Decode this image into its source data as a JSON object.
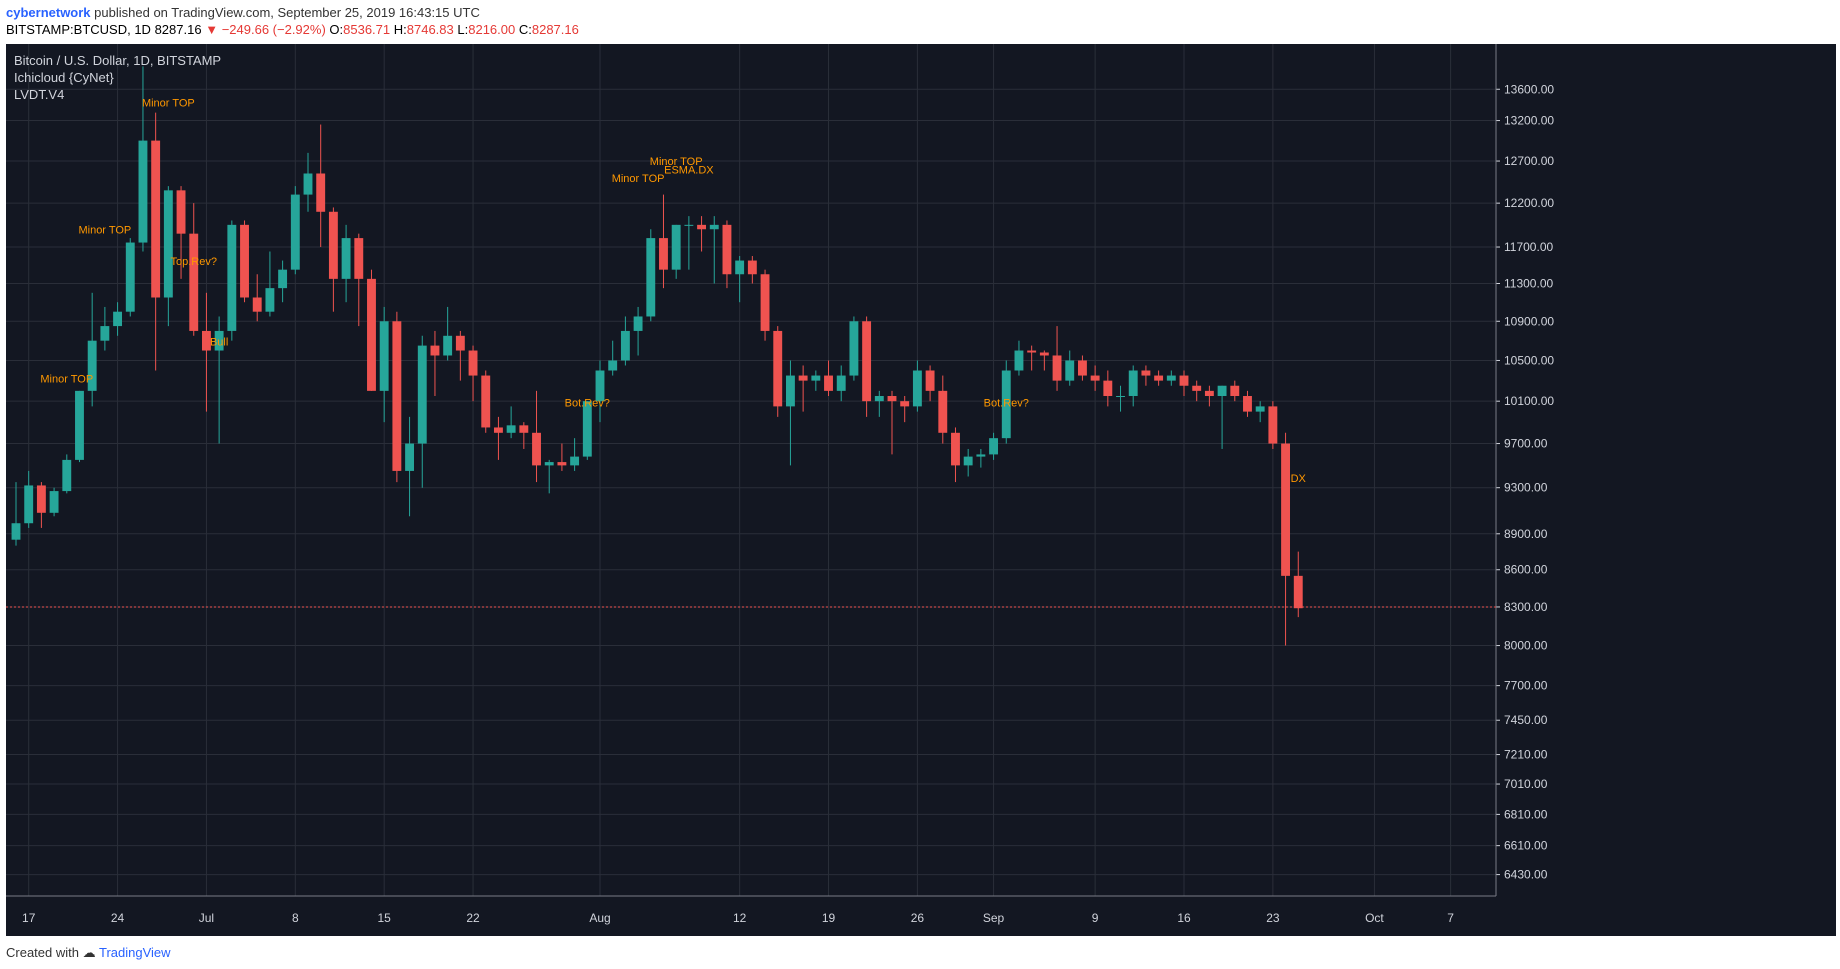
{
  "header": {
    "author": "cybernetwork",
    "published_text": "published on TradingView.com, September 25, 2019 16:43:15 UTC",
    "symbol": "BITSTAMP:BTCUSD, 1D",
    "last": "8287.16",
    "change": "−249.66 (−2.92%)",
    "o_label": "O:",
    "o": "8536.71",
    "h_label": "H:",
    "h": "8746.83",
    "l_label": "L:",
    "l": "8216.00",
    "c_label": "C:",
    "c": "8287.16"
  },
  "legend": {
    "title": "Bitcoin / U.S. Dollar, 1D, BITSTAMP",
    "indicator1": "Ichicloud {CyNet}",
    "indicator2": "LVDT.V4"
  },
  "footer": {
    "created_with": "Created with",
    "brand": "TradingView"
  },
  "colors": {
    "background": "#131722",
    "up": "#26a69a",
    "down": "#ef5350",
    "grid": "#2a2e39",
    "axis_text": "#d1d4dc"
  },
  "chart_data": {
    "type": "candlestick",
    "title": "Bitcoin / U.S. Dollar, 1D, BITSTAMP",
    "y_scale": "log",
    "ylim": [
      6300,
      14200
    ],
    "y_ticks": [
      6430,
      6610,
      6810,
      7010,
      7210,
      7450,
      7700,
      8000,
      8300,
      8600,
      8900,
      9300,
      9700,
      10100,
      10500,
      10900,
      11300,
      11700,
      12200,
      12700,
      13200,
      13600
    ],
    "y_tick_labels": [
      "6430.00",
      "6610.00",
      "6810.00",
      "7010.00",
      "7210.00",
      "7450.00",
      "7700.00",
      "8000.00",
      "8300.00",
      "8600.00",
      "8900.00",
      "9300.00",
      "9700.00",
      "10100.00",
      "10500.00",
      "10900.00",
      "11300.00",
      "11700.00",
      "12200.00",
      "12700.00",
      "13200.00",
      "13600.00"
    ],
    "x_ticks": [
      "17",
      "24",
      "Jul",
      "8",
      "15",
      "22",
      "Aug",
      "12",
      "19",
      "26",
      "Sep",
      "9",
      "16",
      "23",
      "Oct",
      "7"
    ],
    "x_range": [
      "2019-06-16",
      "2019-10-09"
    ],
    "x_tick_dates": [
      "2019-06-17",
      "2019-06-24",
      "2019-07-01",
      "2019-07-08",
      "2019-07-15",
      "2019-07-22",
      "2019-08-01",
      "2019-08-12",
      "2019-08-19",
      "2019-08-26",
      "2019-09-01",
      "2019-09-09",
      "2019-09-16",
      "2019-09-23",
      "2019-10-01",
      "2019-10-07"
    ],
    "candles": [
      {
        "d": "2019-06-16",
        "o": 8850,
        "h": 9350,
        "l": 8800,
        "c": 8990
      },
      {
        "d": "2019-06-17",
        "o": 8990,
        "h": 9450,
        "l": 8950,
        "c": 9320
      },
      {
        "d": "2019-06-18",
        "o": 9320,
        "h": 9350,
        "l": 8950,
        "c": 9080
      },
      {
        "d": "2019-06-19",
        "o": 9080,
        "h": 9300,
        "l": 9050,
        "c": 9270
      },
      {
        "d": "2019-06-20",
        "o": 9270,
        "h": 9600,
        "l": 9250,
        "c": 9550
      },
      {
        "d": "2019-06-21",
        "o": 9550,
        "h": 10200,
        "l": 9530,
        "c": 10200
      },
      {
        "d": "2019-06-22",
        "o": 10200,
        "h": 11200,
        "l": 10050,
        "c": 10700
      },
      {
        "d": "2019-06-23",
        "o": 10700,
        "h": 11050,
        "l": 10600,
        "c": 10850
      },
      {
        "d": "2019-06-24",
        "o": 10850,
        "h": 11100,
        "l": 10750,
        "c": 11000
      },
      {
        "d": "2019-06-25",
        "o": 11000,
        "h": 11800,
        "l": 10950,
        "c": 11750
      },
      {
        "d": "2019-06-26",
        "o": 11750,
        "h": 13900,
        "l": 11650,
        "c": 12950
      },
      {
        "d": "2019-06-27",
        "o": 12950,
        "h": 13300,
        "l": 10400,
        "c": 11150
      },
      {
        "d": "2019-06-28",
        "o": 11150,
        "h": 12400,
        "l": 10850,
        "c": 12350
      },
      {
        "d": "2019-06-29",
        "o": 12350,
        "h": 12400,
        "l": 11350,
        "c": 11850
      },
      {
        "d": "2019-06-30",
        "o": 11850,
        "h": 12200,
        "l": 10750,
        "c": 10800
      },
      {
        "d": "2019-07-01",
        "o": 10800,
        "h": 11200,
        "l": 10000,
        "c": 10600
      },
      {
        "d": "2019-07-02",
        "o": 10600,
        "h": 10950,
        "l": 9700,
        "c": 10800
      },
      {
        "d": "2019-07-03",
        "o": 10800,
        "h": 12000,
        "l": 10700,
        "c": 11950
      },
      {
        "d": "2019-07-04",
        "o": 11950,
        "h": 12000,
        "l": 11100,
        "c": 11150
      },
      {
        "d": "2019-07-05",
        "o": 11150,
        "h": 11400,
        "l": 10900,
        "c": 11000
      },
      {
        "d": "2019-07-06",
        "o": 11000,
        "h": 11650,
        "l": 10950,
        "c": 11250
      },
      {
        "d": "2019-07-07",
        "o": 11250,
        "h": 11550,
        "l": 11100,
        "c": 11450
      },
      {
        "d": "2019-07-08",
        "o": 11450,
        "h": 12400,
        "l": 11400,
        "c": 12300
      },
      {
        "d": "2019-07-09",
        "o": 12300,
        "h": 12800,
        "l": 12100,
        "c": 12550
      },
      {
        "d": "2019-07-10",
        "o": 12550,
        "h": 13150,
        "l": 11700,
        "c": 12100
      },
      {
        "d": "2019-07-11",
        "o": 12100,
        "h": 12150,
        "l": 11000,
        "c": 11350
      },
      {
        "d": "2019-07-12",
        "o": 11350,
        "h": 11950,
        "l": 11100,
        "c": 11800
      },
      {
        "d": "2019-07-13",
        "o": 11800,
        "h": 11850,
        "l": 10850,
        "c": 11350
      },
      {
        "d": "2019-07-14",
        "o": 11350,
        "h": 11450,
        "l": 10200,
        "c": 10200
      },
      {
        "d": "2019-07-15",
        "o": 10200,
        "h": 11050,
        "l": 9900,
        "c": 10900
      },
      {
        "d": "2019-07-16",
        "o": 10900,
        "h": 11000,
        "l": 9350,
        "c": 9450
      },
      {
        "d": "2019-07-17",
        "o": 9450,
        "h": 9950,
        "l": 9050,
        "c": 9700
      },
      {
        "d": "2019-07-18",
        "o": 9700,
        "h": 10750,
        "l": 9300,
        "c": 10650
      },
      {
        "d": "2019-07-19",
        "o": 10650,
        "h": 10800,
        "l": 10150,
        "c": 10550
      },
      {
        "d": "2019-07-20",
        "o": 10550,
        "h": 11050,
        "l": 10500,
        "c": 10750
      },
      {
        "d": "2019-07-21",
        "o": 10750,
        "h": 10800,
        "l": 10300,
        "c": 10600
      },
      {
        "d": "2019-07-22",
        "o": 10600,
        "h": 10650,
        "l": 10100,
        "c": 10350
      },
      {
        "d": "2019-07-23",
        "o": 10350,
        "h": 10400,
        "l": 9800,
        "c": 9850
      },
      {
        "d": "2019-07-24",
        "o": 9850,
        "h": 9950,
        "l": 9550,
        "c": 9800
      },
      {
        "d": "2019-07-25",
        "o": 9800,
        "h": 10050,
        "l": 9750,
        "c": 9870
      },
      {
        "d": "2019-07-26",
        "o": 9870,
        "h": 9900,
        "l": 9650,
        "c": 9800
      },
      {
        "d": "2019-07-27",
        "o": 9800,
        "h": 10200,
        "l": 9350,
        "c": 9500
      },
      {
        "d": "2019-07-28",
        "o": 9500,
        "h": 9550,
        "l": 9250,
        "c": 9530
      },
      {
        "d": "2019-07-29",
        "o": 9530,
        "h": 9700,
        "l": 9450,
        "c": 9500
      },
      {
        "d": "2019-07-30",
        "o": 9500,
        "h": 9750,
        "l": 9450,
        "c": 9580
      },
      {
        "d": "2019-07-31",
        "o": 9580,
        "h": 10100,
        "l": 9550,
        "c": 10100
      },
      {
        "d": "2019-08-01",
        "o": 10100,
        "h": 10500,
        "l": 9900,
        "c": 10400
      },
      {
        "d": "2019-08-02",
        "o": 10400,
        "h": 10700,
        "l": 10350,
        "c": 10500
      },
      {
        "d": "2019-08-03",
        "o": 10500,
        "h": 10950,
        "l": 10450,
        "c": 10800
      },
      {
        "d": "2019-08-04",
        "o": 10800,
        "h": 11050,
        "l": 10550,
        "c": 10950
      },
      {
        "d": "2019-08-05",
        "o": 10950,
        "h": 11900,
        "l": 10900,
        "c": 11800
      },
      {
        "d": "2019-08-06",
        "o": 11800,
        "h": 12300,
        "l": 11250,
        "c": 11450
      },
      {
        "d": "2019-08-07",
        "o": 11450,
        "h": 11950,
        "l": 11350,
        "c": 11950
      },
      {
        "d": "2019-08-08",
        "o": 11950,
        "h": 12050,
        "l": 11450,
        "c": 11950
      },
      {
        "d": "2019-08-09",
        "o": 11950,
        "h": 12050,
        "l": 11650,
        "c": 11900
      },
      {
        "d": "2019-08-10",
        "o": 11900,
        "h": 12050,
        "l": 11300,
        "c": 11950
      },
      {
        "d": "2019-08-11",
        "o": 11950,
        "h": 12000,
        "l": 11250,
        "c": 11400
      },
      {
        "d": "2019-08-12",
        "o": 11400,
        "h": 11600,
        "l": 11100,
        "c": 11550
      },
      {
        "d": "2019-08-13",
        "o": 11550,
        "h": 11600,
        "l": 11300,
        "c": 11400
      },
      {
        "d": "2019-08-14",
        "o": 11400,
        "h": 11450,
        "l": 10700,
        "c": 10800
      },
      {
        "d": "2019-08-15",
        "o": 10800,
        "h": 10850,
        "l": 9950,
        "c": 10050
      },
      {
        "d": "2019-08-16",
        "o": 10050,
        "h": 10500,
        "l": 9500,
        "c": 10350
      },
      {
        "d": "2019-08-17",
        "o": 10350,
        "h": 10450,
        "l": 10000,
        "c": 10300
      },
      {
        "d": "2019-08-18",
        "o": 10300,
        "h": 10400,
        "l": 10200,
        "c": 10350
      },
      {
        "d": "2019-08-19",
        "o": 10350,
        "h": 10500,
        "l": 10150,
        "c": 10200
      },
      {
        "d": "2019-08-20",
        "o": 10200,
        "h": 10450,
        "l": 10100,
        "c": 10350
      },
      {
        "d": "2019-08-21",
        "o": 10350,
        "h": 10950,
        "l": 10300,
        "c": 10900
      },
      {
        "d": "2019-08-22",
        "o": 10900,
        "h": 10950,
        "l": 9950,
        "c": 10100
      },
      {
        "d": "2019-08-23",
        "o": 10100,
        "h": 10200,
        "l": 9950,
        "c": 10150
      },
      {
        "d": "2019-08-24",
        "o": 10150,
        "h": 10200,
        "l": 9600,
        "c": 10100
      },
      {
        "d": "2019-08-25",
        "o": 10100,
        "h": 10150,
        "l": 9900,
        "c": 10050
      },
      {
        "d": "2019-08-26",
        "o": 10050,
        "h": 10500,
        "l": 10000,
        "c": 10400
      },
      {
        "d": "2019-08-27",
        "o": 10400,
        "h": 10450,
        "l": 10100,
        "c": 10200
      },
      {
        "d": "2019-08-28",
        "o": 10200,
        "h": 10350,
        "l": 9700,
        "c": 9800
      },
      {
        "d": "2019-08-29",
        "o": 9800,
        "h": 9850,
        "l": 9350,
        "c": 9500
      },
      {
        "d": "2019-08-30",
        "o": 9500,
        "h": 9650,
        "l": 9400,
        "c": 9580
      },
      {
        "d": "2019-08-31",
        "o": 9580,
        "h": 9650,
        "l": 9480,
        "c": 9600
      },
      {
        "d": "2019-09-01",
        "o": 9600,
        "h": 9800,
        "l": 9550,
        "c": 9750
      },
      {
        "d": "2019-09-02",
        "o": 9750,
        "h": 10500,
        "l": 9700,
        "c": 10400
      },
      {
        "d": "2019-09-03",
        "o": 10400,
        "h": 10700,
        "l": 10350,
        "c": 10600
      },
      {
        "d": "2019-09-04",
        "o": 10600,
        "h": 10650,
        "l": 10400,
        "c": 10580
      },
      {
        "d": "2019-09-05",
        "o": 10580,
        "h": 10600,
        "l": 10400,
        "c": 10550
      },
      {
        "d": "2019-09-06",
        "o": 10550,
        "h": 10850,
        "l": 10200,
        "c": 10300
      },
      {
        "d": "2019-09-07",
        "o": 10300,
        "h": 10600,
        "l": 10250,
        "c": 10500
      },
      {
        "d": "2019-09-08",
        "o": 10500,
        "h": 10550,
        "l": 10300,
        "c": 10350
      },
      {
        "d": "2019-09-09",
        "o": 10350,
        "h": 10450,
        "l": 10200,
        "c": 10300
      },
      {
        "d": "2019-09-10",
        "o": 10300,
        "h": 10400,
        "l": 10050,
        "c": 10150
      },
      {
        "d": "2019-09-11",
        "o": 10150,
        "h": 10250,
        "l": 10000,
        "c": 10150
      },
      {
        "d": "2019-09-12",
        "o": 10150,
        "h": 10450,
        "l": 10050,
        "c": 10400
      },
      {
        "d": "2019-09-13",
        "o": 10400,
        "h": 10450,
        "l": 10250,
        "c": 10350
      },
      {
        "d": "2019-09-14",
        "o": 10350,
        "h": 10400,
        "l": 10250,
        "c": 10300
      },
      {
        "d": "2019-09-15",
        "o": 10300,
        "h": 10400,
        "l": 10250,
        "c": 10350
      },
      {
        "d": "2019-09-16",
        "o": 10350,
        "h": 10400,
        "l": 10150,
        "c": 10250
      },
      {
        "d": "2019-09-17",
        "o": 10250,
        "h": 10300,
        "l": 10100,
        "c": 10200
      },
      {
        "d": "2019-09-18",
        "o": 10200,
        "h": 10250,
        "l": 10050,
        "c": 10150
      },
      {
        "d": "2019-09-19",
        "o": 10150,
        "h": 10250,
        "l": 9650,
        "c": 10250
      },
      {
        "d": "2019-09-20",
        "o": 10250,
        "h": 10300,
        "l": 10100,
        "c": 10150
      },
      {
        "d": "2019-09-21",
        "o": 10150,
        "h": 10200,
        "l": 9950,
        "c": 10000
      },
      {
        "d": "2019-09-22",
        "o": 10000,
        "h": 10100,
        "l": 9900,
        "c": 10050
      },
      {
        "d": "2019-09-23",
        "o": 10050,
        "h": 10100,
        "l": 9650,
        "c": 9700
      },
      {
        "d": "2019-09-24",
        "o": 9700,
        "h": 9800,
        "l": 8000,
        "c": 8550
      },
      {
        "d": "2019-09-25",
        "o": 8550,
        "h": 8750,
        "l": 8220,
        "c": 8290
      }
    ],
    "annotations": [
      {
        "text": "Minor TOP",
        "d": "2019-06-20",
        "y": 10280
      },
      {
        "text": "Minor TOP",
        "d": "2019-06-23",
        "y": 11850
      },
      {
        "text": "Minor TOP",
        "d": "2019-06-28",
        "y": 13380
      },
      {
        "text": "Top.Rev?",
        "d": "2019-06-30",
        "y": 11500
      },
      {
        "text": "Bull",
        "d": "2019-07-02",
        "y": 10650
      },
      {
        "text": "Minor TOP",
        "d": "2019-08-04",
        "y": 12450
      },
      {
        "text": "Minor TOP",
        "d": "2019-08-07",
        "y": 12650
      },
      {
        "text": "ESMA.DX",
        "d": "2019-08-08",
        "y": 12550
      },
      {
        "text": "Bot.Rev?",
        "d": "2019-07-31",
        "y": 10050
      },
      {
        "text": "Bot.Rev?",
        "d": "2019-09-02",
        "y": 10050
      },
      {
        "text": "DX",
        "d": "2019-09-25",
        "y": 9350
      }
    ],
    "price_line": 8300
  }
}
